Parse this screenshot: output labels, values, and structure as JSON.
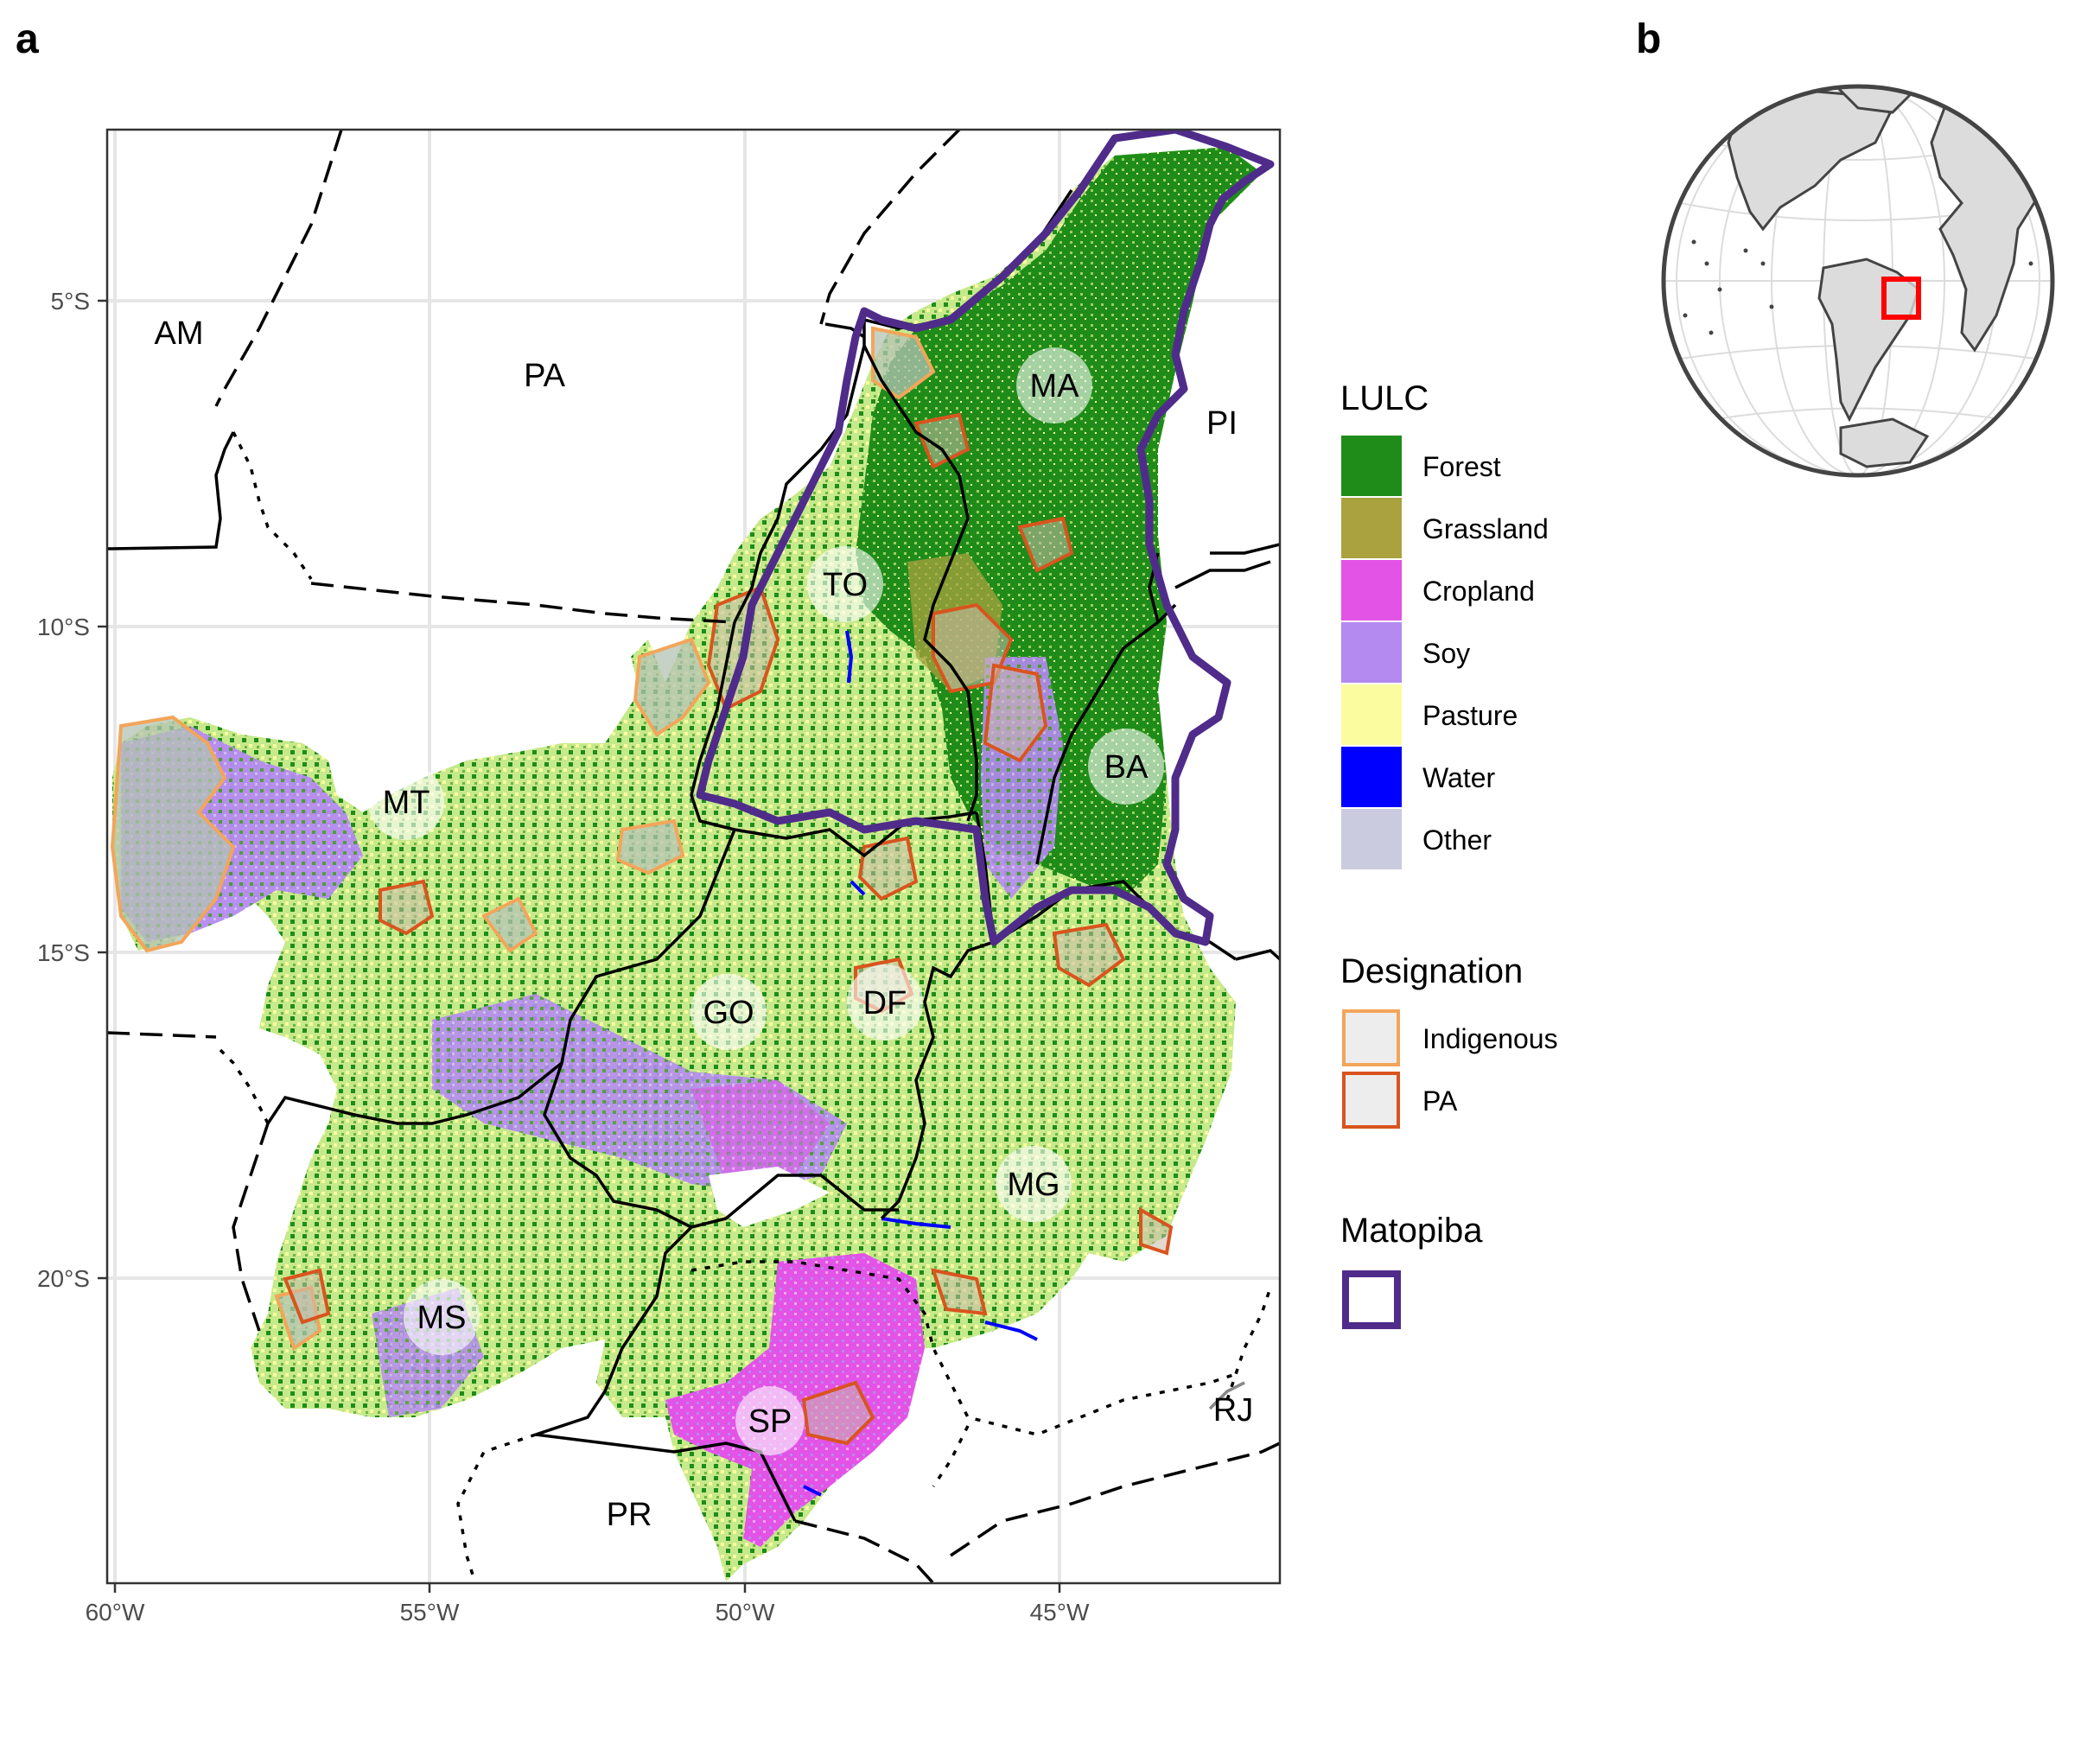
{
  "panels": {
    "a": "a",
    "b": "b"
  },
  "map": {
    "lat_ticks": [
      "5°S",
      "10°S",
      "15°S",
      "20°S"
    ],
    "lon_ticks": [
      "60°W",
      "55°W",
      "50°W",
      "45°W"
    ],
    "state_labels": [
      "AM",
      "PA",
      "MA",
      "PI",
      "TO",
      "BA",
      "MT",
      "GO",
      "DF",
      "MG",
      "MS",
      "SP",
      "PR",
      "RJ"
    ]
  },
  "legend": {
    "lulc": {
      "title": "LULC",
      "items": [
        {
          "label": "Forest",
          "color": "#1f8c1a"
        },
        {
          "label": "Grassland",
          "color": "#a9a23f"
        },
        {
          "label": "Cropland",
          "color": "#e253e6"
        },
        {
          "label": "Soy",
          "color": "#b48af0"
        },
        {
          "label": "Pasture",
          "color": "#fbfba0"
        },
        {
          "label": "Water",
          "color": "#0000ff"
        },
        {
          "label": "Other",
          "color": "#cbcbdf"
        }
      ]
    },
    "designation": {
      "title": "Designation",
      "items": [
        {
          "label": "Indigenous",
          "color": "#f3a55a"
        },
        {
          "label": "PA",
          "color": "#d9541e"
        }
      ]
    },
    "matopiba": {
      "title": "Matopiba",
      "color": "#4f2c8a"
    }
  },
  "inset": {
    "highlight_color": "#ff0000"
  }
}
